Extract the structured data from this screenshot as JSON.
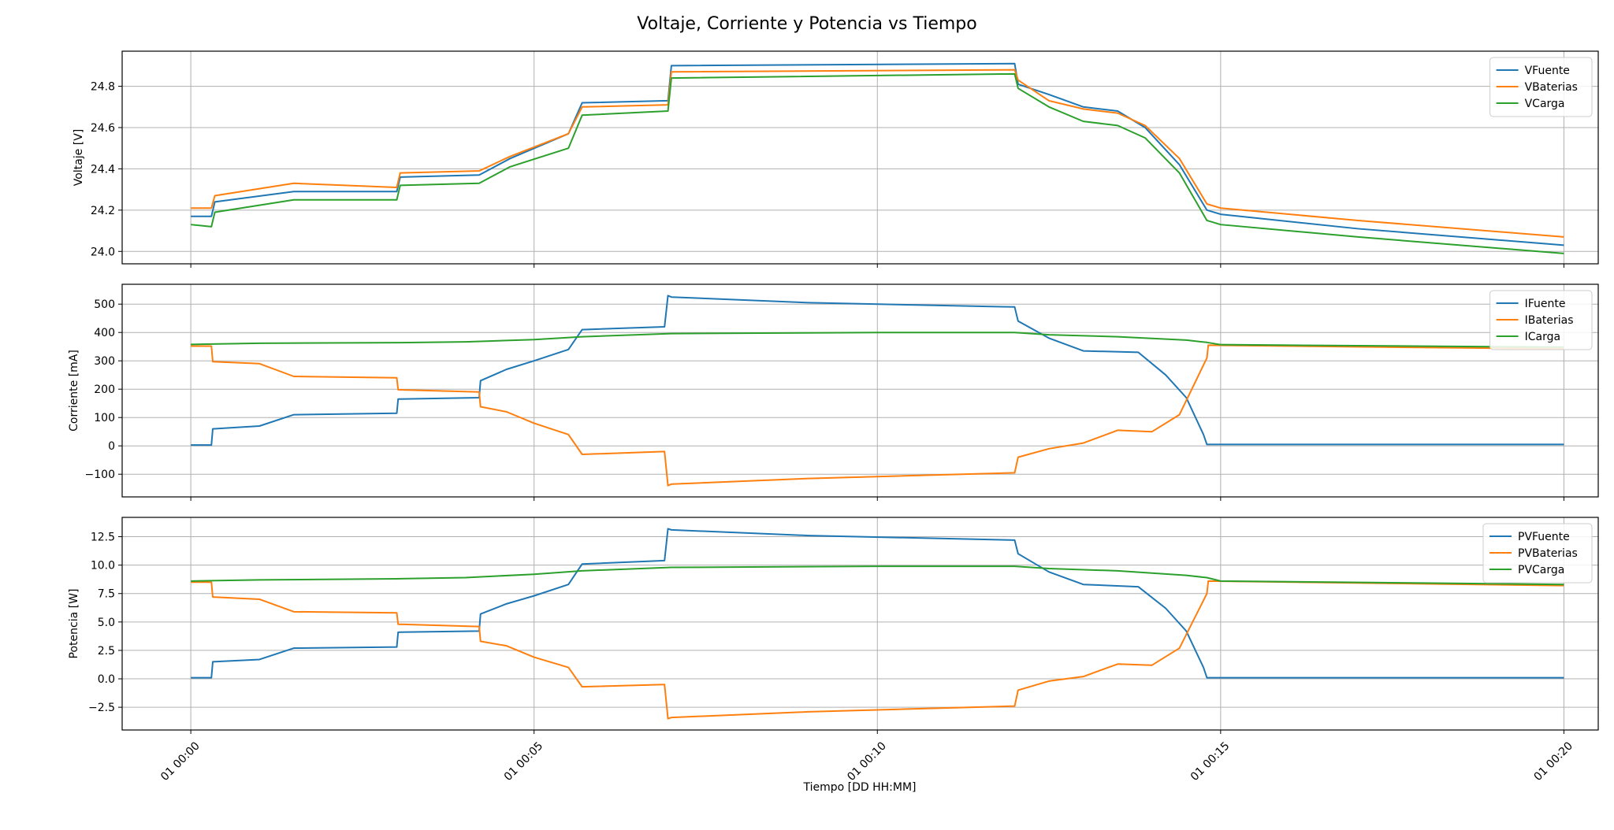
{
  "figure": {
    "title": "Voltaje, Corriente y Potencia vs Tiempo",
    "xlabel": "Tiempo [DD HH:MM]"
  },
  "chart_data": [
    {
      "type": "line",
      "ylabel": "Voltaje [V]",
      "x_unit": "minutes",
      "xlim": [
        -1.0,
        20.5
      ],
      "ylim": [
        23.94,
        24.97
      ],
      "yticks": [
        24.0,
        24.2,
        24.4,
        24.6,
        24.8
      ],
      "ytick_labels": [
        "24.0",
        "24.2",
        "24.4",
        "24.6",
        "24.8"
      ],
      "xticks": [
        0,
        5,
        10,
        15,
        20
      ],
      "xtick_labels": [
        "01 00:00",
        "01 00:05",
        "01 00:10",
        "01 00:15",
        "01 00:20"
      ],
      "grid": true,
      "legend": "top-right",
      "series": [
        {
          "name": "VFuente",
          "color": "#1f77b4",
          "x": [
            0,
            0.3,
            0.35,
            1.5,
            3.0,
            3.05,
            4.2,
            4.65,
            5.5,
            5.7,
            6.95,
            7.0,
            12.0,
            12.05,
            12.5,
            13.0,
            13.5,
            13.9,
            14.4,
            14.8,
            15.0,
            17.0,
            20.0
          ],
          "y": [
            24.17,
            24.17,
            24.24,
            24.29,
            24.29,
            24.36,
            24.37,
            24.45,
            24.57,
            24.72,
            24.73,
            24.9,
            24.91,
            24.81,
            24.76,
            24.7,
            24.68,
            24.6,
            24.42,
            24.2,
            24.18,
            24.11,
            24.03
          ]
        },
        {
          "name": "VBaterias",
          "color": "#ff7f0e",
          "x": [
            0,
            0.3,
            0.35,
            1.5,
            3.0,
            3.05,
            4.2,
            4.65,
            5.5,
            5.7,
            6.95,
            7.0,
            12.0,
            12.05,
            12.5,
            13.0,
            13.5,
            13.9,
            14.4,
            14.8,
            15.0,
            17.0,
            20.0
          ],
          "y": [
            24.21,
            24.21,
            24.27,
            24.33,
            24.31,
            24.38,
            24.39,
            24.46,
            24.57,
            24.7,
            24.71,
            24.87,
            24.88,
            24.83,
            24.73,
            24.69,
            24.67,
            24.61,
            24.45,
            24.23,
            24.21,
            24.15,
            24.07
          ]
        },
        {
          "name": "VCarga",
          "color": "#2ca02c",
          "x": [
            0,
            0.3,
            0.35,
            1.5,
            3.0,
            3.05,
            4.2,
            4.65,
            5.5,
            5.7,
            6.95,
            7.0,
            12.0,
            12.05,
            12.5,
            13.0,
            13.5,
            13.9,
            14.4,
            14.8,
            15.0,
            17.0,
            20.0
          ],
          "y": [
            24.13,
            24.12,
            24.19,
            24.25,
            24.25,
            24.32,
            24.33,
            24.41,
            24.5,
            24.66,
            24.68,
            24.84,
            24.86,
            24.79,
            24.7,
            24.63,
            24.61,
            24.55,
            24.38,
            24.15,
            24.13,
            24.07,
            23.99
          ]
        }
      ]
    },
    {
      "type": "line",
      "ylabel": "Corriente [mA]",
      "x_unit": "minutes",
      "xlim": [
        -1.0,
        20.5
      ],
      "ylim": [
        -180,
        570
      ],
      "yticks": [
        -100,
        0,
        100,
        200,
        300,
        400,
        500
      ],
      "ytick_labels": [
        "−100",
        "0",
        "100",
        "200",
        "300",
        "400",
        "500"
      ],
      "xticks": [
        0,
        5,
        10,
        15,
        20
      ],
      "xtick_labels": [
        "01 00:00",
        "01 00:05",
        "01 00:10",
        "01 00:15",
        "01 00:20"
      ],
      "grid": true,
      "legend": "top-right",
      "series": [
        {
          "name": "IFuente",
          "color": "#1f77b4",
          "x": [
            0,
            0.3,
            0.32,
            1.0,
            1.5,
            3.0,
            3.02,
            4.2,
            4.22,
            4.6,
            5.0,
            5.5,
            5.7,
            6.9,
            6.95,
            7.0,
            9.0,
            12.0,
            12.05,
            12.5,
            13.0,
            13.8,
            14.2,
            14.5,
            14.75,
            14.8,
            20.0
          ],
          "y": [
            3,
            3,
            60,
            70,
            110,
            115,
            165,
            170,
            230,
            270,
            300,
            340,
            410,
            420,
            530,
            525,
            505,
            490,
            440,
            380,
            335,
            330,
            250,
            170,
            40,
            5,
            5
          ]
        },
        {
          "name": "IBaterias",
          "color": "#ff7f0e",
          "x": [
            0,
            0.3,
            0.32,
            1.0,
            1.5,
            3.0,
            3.02,
            4.2,
            4.22,
            4.6,
            5.0,
            5.5,
            5.7,
            6.9,
            6.95,
            7.0,
            9.0,
            12.0,
            12.05,
            12.5,
            13.0,
            13.5,
            14.0,
            14.4,
            14.8,
            14.82,
            20.0
          ],
          "y": [
            352,
            352,
            297,
            290,
            245,
            240,
            198,
            190,
            138,
            120,
            80,
            40,
            -30,
            -20,
            -140,
            -135,
            -115,
            -95,
            -40,
            -10,
            10,
            55,
            50,
            110,
            310,
            355,
            342
          ]
        },
        {
          "name": "ICarga",
          "color": "#2ca02c",
          "x": [
            0,
            1.0,
            3.0,
            4.0,
            5.0,
            5.7,
            7.0,
            10.0,
            12.0,
            12.5,
            13.5,
            14.5,
            14.8,
            15.0,
            20.0
          ],
          "y": [
            358,
            362,
            364,
            367,
            375,
            385,
            396,
            400,
            400,
            392,
            385,
            373,
            365,
            357,
            348
          ]
        }
      ]
    },
    {
      "type": "line",
      "ylabel": "Potencia [W]",
      "x_unit": "minutes",
      "xlim": [
        -1.0,
        20.5
      ],
      "ylim": [
        -4.5,
        14.2
      ],
      "yticks": [
        -2.5,
        0.0,
        2.5,
        5.0,
        7.5,
        10.0,
        12.5
      ],
      "ytick_labels": [
        "−2.5",
        "0.0",
        "2.5",
        "5.0",
        "7.5",
        "10.0",
        "12.5"
      ],
      "xticks": [
        0,
        5,
        10,
        15,
        20
      ],
      "xtick_labels": [
        "01 00:00",
        "01 00:05",
        "01 00:10",
        "01 00:15",
        "01 00:20"
      ],
      "grid": true,
      "legend": "top-right",
      "series": [
        {
          "name": "PVFuente",
          "color": "#1f77b4",
          "x": [
            0,
            0.3,
            0.32,
            1.0,
            1.5,
            3.0,
            3.02,
            4.2,
            4.22,
            4.6,
            5.0,
            5.5,
            5.7,
            6.9,
            6.95,
            7.0,
            9.0,
            12.0,
            12.05,
            12.5,
            13.0,
            13.8,
            14.2,
            14.5,
            14.75,
            14.8,
            20.0
          ],
          "y": [
            0.1,
            0.1,
            1.5,
            1.7,
            2.7,
            2.8,
            4.1,
            4.2,
            5.7,
            6.6,
            7.3,
            8.3,
            10.1,
            10.4,
            13.2,
            13.1,
            12.6,
            12.2,
            11.0,
            9.4,
            8.3,
            8.1,
            6.2,
            4.2,
            1.0,
            0.1,
            0.1
          ]
        },
        {
          "name": "PVBaterias",
          "color": "#ff7f0e",
          "x": [
            0,
            0.3,
            0.32,
            1.0,
            1.5,
            3.0,
            3.02,
            4.2,
            4.22,
            4.6,
            5.0,
            5.5,
            5.7,
            6.9,
            6.95,
            7.0,
            9.0,
            12.0,
            12.05,
            12.5,
            13.0,
            13.5,
            14.0,
            14.4,
            14.8,
            14.82,
            20.0
          ],
          "y": [
            8.5,
            8.5,
            7.2,
            7.0,
            5.9,
            5.8,
            4.8,
            4.6,
            3.3,
            2.9,
            1.9,
            1.0,
            -0.7,
            -0.5,
            -3.5,
            -3.4,
            -2.9,
            -2.4,
            -1.0,
            -0.2,
            0.2,
            1.3,
            1.2,
            2.7,
            7.5,
            8.6,
            8.2
          ]
        },
        {
          "name": "PVCarga",
          "color": "#2ca02c",
          "x": [
            0,
            1.0,
            3.0,
            4.0,
            5.0,
            5.7,
            7.0,
            10.0,
            12.0,
            12.5,
            13.5,
            14.5,
            14.8,
            15.0,
            20.0
          ],
          "y": [
            8.6,
            8.7,
            8.8,
            8.9,
            9.2,
            9.5,
            9.8,
            9.9,
            9.9,
            9.7,
            9.5,
            9.1,
            8.9,
            8.6,
            8.3
          ]
        }
      ]
    }
  ]
}
